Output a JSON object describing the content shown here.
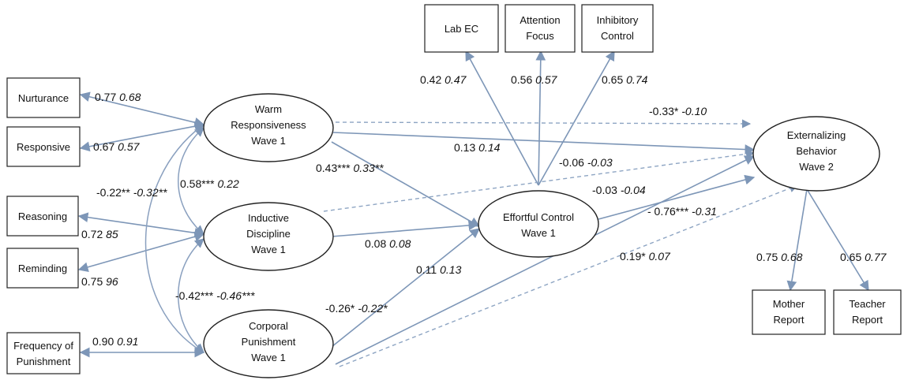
{
  "colors": {
    "arrow": "#7d96b7",
    "node_stroke": "#222222",
    "text": "#111111"
  },
  "nodes": {
    "lab_ec": "Lab EC",
    "attention_focus": [
      "Attention",
      "Focus"
    ],
    "inhibitory_control": [
      "Inhibitory",
      "Control"
    ],
    "nurturance": "Nurturance",
    "responsive": "Responsive",
    "reasoning": "Reasoning",
    "reminding": "Reminding",
    "frequency_of_punishment": [
      "Frequency of",
      "Punishment"
    ],
    "mother_report": [
      "Mother",
      "Report"
    ],
    "teacher_report": [
      "Teacher",
      "Report"
    ],
    "warm_responsiveness": [
      "Warm",
      "Responsiveness",
      "Wave 1"
    ],
    "inductive_discipline": [
      "Inductive",
      "Discipline",
      "Wave 1"
    ],
    "corporal_punishment": [
      "Corporal",
      "Punishment",
      "Wave 1"
    ],
    "effortful_control": [
      "Effortful Control",
      "Wave 1"
    ],
    "externalizing_behavior": [
      "Externalizing",
      "Behavior",
      "Wave 2"
    ]
  },
  "coefficients": {
    "lab_ec": {
      "plain": "0.42 ",
      "italic": "0.47"
    },
    "attention_focus": {
      "plain": "0.56 ",
      "italic": "0.57"
    },
    "inhibitory_control": {
      "plain": "0.65 ",
      "italic": "0.74"
    },
    "nurturance": {
      "plain": "0.77 ",
      "italic": "0.68"
    },
    "responsive": {
      "plain": "0.67 ",
      "italic": "0.57"
    },
    "reasoning": {
      "plain": "0.72 ",
      "italic": "85"
    },
    "reminding": {
      "plain": "0.75 ",
      "italic": "96"
    },
    "frequency_of_punishment": {
      "plain": "0.90 ",
      "italic": "0.91"
    },
    "mother_report": {
      "plain": "0.75 ",
      "italic": "0.68"
    },
    "teacher_report": {
      "plain": "0.65 ",
      "italic": "0.77"
    },
    "warm_to_inductive": {
      "plain": "0.58*** ",
      "italic": "0.22"
    },
    "warm_to_corporal": {
      "plain": "-0.22** ",
      "italic": "-0.32**"
    },
    "inductive_to_corporal": {
      "plain": "-0.42*** ",
      "italic": "-0.46***"
    },
    "warm_to_ec": {
      "plain": "0.43*** ",
      "italic": "0.33**"
    },
    "warm_to_ext_direct": {
      "plain": "-0.33* ",
      "italic": "-0.10"
    },
    "warm_to_ext": {
      "plain": "0.13 ",
      "italic": "0.14"
    },
    "inductive_to_ext": {
      "plain": "-0.06 ",
      "italic": "-0.03"
    },
    "inductive_to_ec": {
      "plain": "0.08 ",
      "italic": "0.08"
    },
    "corporal_to_ec": {
      "plain": "-0.26* ",
      "italic": "-0.22*"
    },
    "corporal_to_ext_dashed": {
      "plain": "0.11 ",
      "italic": "0.13"
    },
    "corporal_to_ext": {
      "plain": "-0.03 ",
      "italic": "-0.04"
    },
    "ec_to_ext": {
      "plain": "- 0.76*** ",
      "italic": "-0.31"
    },
    "corporal_to_ext_far": {
      "plain": "0.19* ",
      "italic": "0.07"
    }
  }
}
